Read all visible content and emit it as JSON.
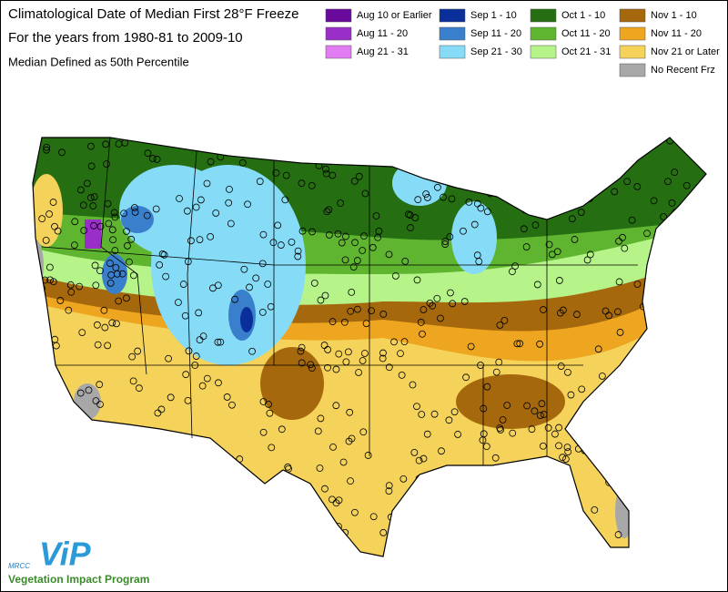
{
  "header": {
    "title": "Climatological Date of Median First 28°F Freeze",
    "subtitle": "For the years from 1980-81 to 2009-10",
    "note": "Median Defined as 50th Percentile"
  },
  "legend": {
    "columns": [
      [
        {
          "label": "Aug 10 or Earlier",
          "color": "#6a0a9c"
        },
        {
          "label": "Aug 11 - 20",
          "color": "#9a2ec8"
        },
        {
          "label": "Aug 21 - 31",
          "color": "#e27cf2"
        }
      ],
      [
        {
          "label": "Sep 1 - 10",
          "color": "#0a2e9a"
        },
        {
          "label": "Sep 11 - 20",
          "color": "#3a7fcc"
        },
        {
          "label": "Sep 21 - 30",
          "color": "#86dcf7"
        }
      ],
      [
        {
          "label": "Oct 1 - 10",
          "color": "#266e12"
        },
        {
          "label": "Oct 11 - 20",
          "color": "#5fb52f"
        },
        {
          "label": "Oct 21 - 31",
          "color": "#b6f48a"
        }
      ],
      [
        {
          "label": "Nov 1 - 10",
          "color": "#a5680c"
        },
        {
          "label": "Nov 11 - 20",
          "color": "#eea520"
        },
        {
          "label": "Nov 21 or Later",
          "color": "#f5d35a"
        },
        {
          "label": "No Recent Frz",
          "color": "#a8a8a8"
        }
      ]
    ]
  },
  "logo": {
    "org": "MRCC",
    "mark": "ViP",
    "name": "Vegetation Impact Program"
  }
}
